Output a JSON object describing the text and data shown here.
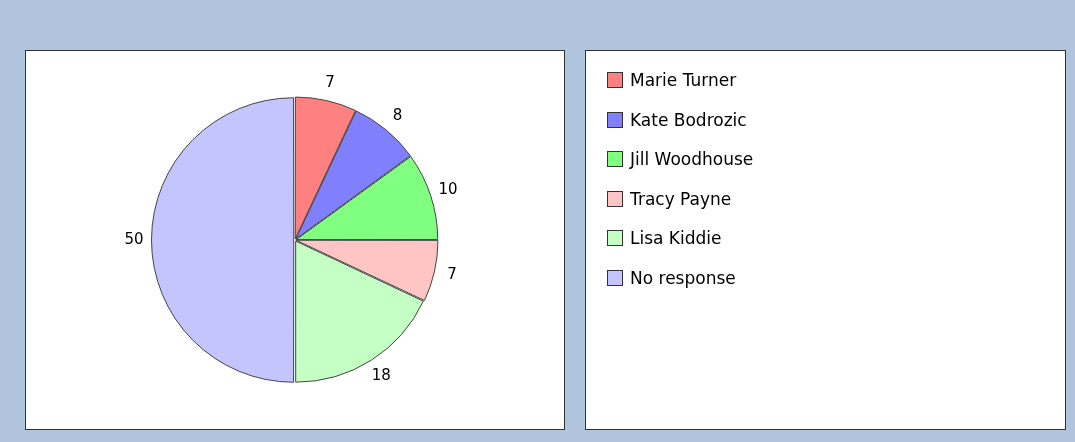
{
  "chart_data": {
    "type": "pie",
    "categories": [
      "Marie Turner",
      "Kate Bodrozic",
      "Jill Woodhouse",
      "Tracy Payne",
      "Lisa Kiddie",
      "No response"
    ],
    "values": [
      7,
      8,
      10,
      7,
      18,
      50
    ],
    "colors": [
      "#ff8080",
      "#8080ff",
      "#80ff80",
      "#ffc4c4",
      "#c4ffc4",
      "#c4c4ff"
    ],
    "data_labels": true,
    "legend": "right"
  }
}
